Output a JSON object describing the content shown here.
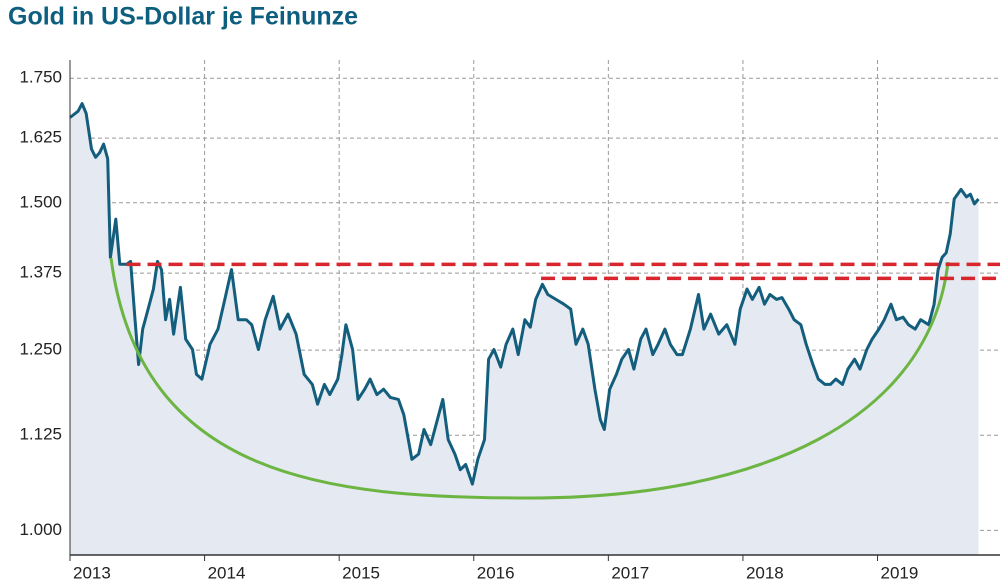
{
  "chart_data": {
    "type": "line",
    "title": "Gold in US-Dollar je Feinunze",
    "log_y": true,
    "grid": true,
    "xlim": [
      2013,
      2019.91
    ],
    "xticks": [
      2013,
      2014,
      2015,
      2016,
      2017,
      2018,
      2019
    ],
    "ylim": [
      970,
      1790
    ],
    "yticks": [
      {
        "value": 1000,
        "label": "1.000"
      },
      {
        "value": 1125,
        "label": "1.125"
      },
      {
        "value": 1250,
        "label": "1.250"
      },
      {
        "value": 1375,
        "label": "1.375"
      },
      {
        "value": 1500,
        "label": "1.500"
      },
      {
        "value": 1625,
        "label": "1.625"
      },
      {
        "value": 1750,
        "label": "1.750"
      }
    ],
    "fill_color": "#e4e9f2",
    "series": [
      {
        "color": "#135e7c",
        "x": [
          2013.0,
          2013.06,
          2013.09,
          2013.12,
          2013.16,
          2013.19,
          2013.22,
          2013.25,
          2013.28,
          2013.3,
          2013.34,
          2013.37,
          2013.42,
          2013.45,
          2013.48,
          2013.51,
          2013.54,
          2013.58,
          2013.62,
          2013.65,
          2013.68,
          2013.71,
          2013.74,
          2013.77,
          2013.82,
          2013.86,
          2013.91,
          2013.94,
          2013.98,
          2014.04,
          2014.1,
          2014.15,
          2014.2,
          2014.25,
          2014.31,
          2014.35,
          2014.4,
          2014.45,
          2014.51,
          2014.56,
          2014.62,
          2014.68,
          2014.74,
          2014.8,
          2014.84,
          2014.89,
          2014.93,
          2014.99,
          2015.02,
          2015.05,
          2015.1,
          2015.14,
          2015.19,
          2015.23,
          2015.28,
          2015.33,
          2015.38,
          2015.44,
          2015.48,
          2015.54,
          2015.59,
          2015.63,
          2015.68,
          2015.72,
          2015.77,
          2015.81,
          2015.86,
          2015.9,
          2015.94,
          2015.99,
          2016.03,
          2016.08,
          2016.11,
          2016.15,
          2016.2,
          2016.24,
          2016.29,
          2016.33,
          2016.38,
          2016.42,
          2016.46,
          2016.51,
          2016.55,
          2016.61,
          2016.67,
          2016.72,
          2016.76,
          2016.81,
          2016.85,
          2016.9,
          2016.94,
          2016.97,
          2017.01,
          2017.06,
          2017.1,
          2017.15,
          2017.19,
          2017.24,
          2017.28,
          2017.33,
          2017.37,
          2017.42,
          2017.46,
          2017.51,
          2017.55,
          2017.61,
          2017.67,
          2017.71,
          2017.76,
          2017.82,
          2017.88,
          2017.94,
          2017.98,
          2018.03,
          2018.07,
          2018.12,
          2018.16,
          2018.2,
          2018.25,
          2018.29,
          2018.34,
          2018.38,
          2018.43,
          2018.47,
          2018.52,
          2018.56,
          2018.61,
          2018.65,
          2018.69,
          2018.74,
          2018.78,
          2018.83,
          2018.87,
          2018.92,
          2018.96,
          2019.01,
          2019.05,
          2019.1,
          2019.14,
          2019.19,
          2019.23,
          2019.28,
          2019.32,
          2019.38,
          2019.42,
          2019.45,
          2019.48,
          2019.51,
          2019.54,
          2019.57,
          2019.62,
          2019.66,
          2019.69,
          2019.72,
          2019.75
        ],
        "values": [
          1667,
          1680,
          1696,
          1675,
          1603,
          1587,
          1596,
          1613,
          1584,
          1402,
          1470,
          1390,
          1390,
          1395,
          1307,
          1228,
          1283,
          1315,
          1348,
          1395,
          1381,
          1298,
          1331,
          1275,
          1351,
          1267,
          1251,
          1213,
          1206,
          1259,
          1283,
          1331,
          1381,
          1298,
          1298,
          1290,
          1251,
          1298,
          1336,
          1283,
          1307,
          1275,
          1213,
          1198,
          1169,
          1198,
          1183,
          1206,
          1243,
          1290,
          1251,
          1176,
          1191,
          1206,
          1183,
          1191,
          1179,
          1176,
          1154,
          1092,
          1099,
          1133,
          1112,
          1140,
          1176,
          1119,
          1099,
          1078,
          1085,
          1059,
          1092,
          1119,
          1236,
          1251,
          1224,
          1259,
          1283,
          1243,
          1298,
          1286,
          1331,
          1356,
          1339,
          1331,
          1323,
          1315,
          1259,
          1283,
          1259,
          1191,
          1147,
          1133,
          1191,
          1213,
          1236,
          1251,
          1221,
          1267,
          1283,
          1243,
          1259,
          1283,
          1259,
          1243,
          1243,
          1283,
          1339,
          1283,
          1307,
          1275,
          1290,
          1259,
          1315,
          1348,
          1331,
          1351,
          1323,
          1339,
          1331,
          1334,
          1315,
          1298,
          1290,
          1259,
          1228,
          1206,
          1198,
          1198,
          1206,
          1198,
          1221,
          1236,
          1221,
          1251,
          1267,
          1283,
          1298,
          1323,
          1298,
          1302,
          1290,
          1283,
          1298,
          1290,
          1323,
          1381,
          1402,
          1410,
          1443,
          1507,
          1525,
          1511,
          1516,
          1498,
          1507
        ]
      }
    ],
    "hlines": [
      {
        "value": 1390,
        "x_start": 2013.42
      },
      {
        "value": 1366,
        "x_start": 2016.5
      }
    ],
    "hline_color": "#d8262e"
  }
}
